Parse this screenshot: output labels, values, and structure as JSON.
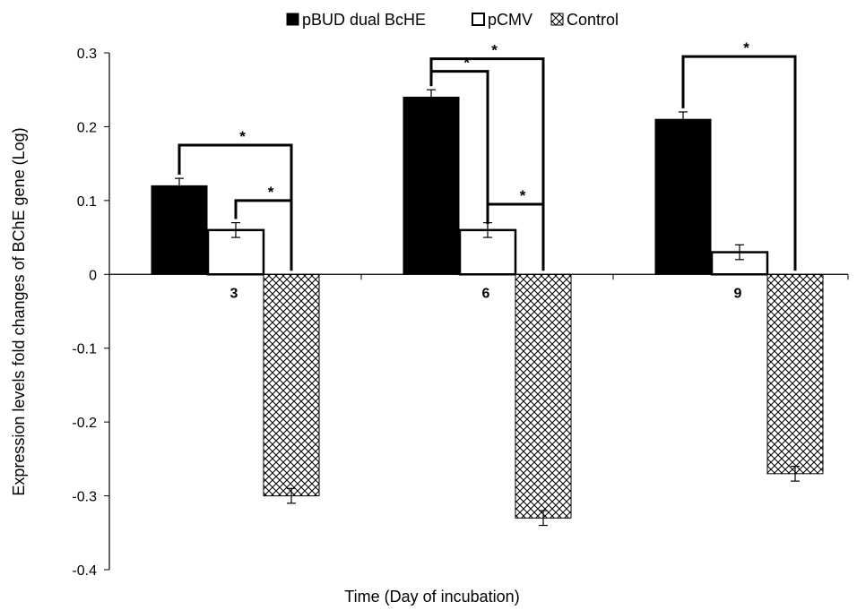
{
  "chart_data": {
    "type": "bar",
    "title": "",
    "xlabel": "Time (Day of incubation)",
    "ylabel": "Expression levels fold changes of BChE gene (Log)",
    "ylim": [
      -0.4,
      0.3
    ],
    "yticks": [
      0.3,
      0.2,
      0.1,
      0,
      -0.1,
      -0.2,
      -0.3,
      -0.4
    ],
    "ytick_labels": [
      "0.3",
      "0.2",
      "0.1",
      "0",
      "-0.1",
      "-0.2",
      "-0.3",
      "-0.4"
    ],
    "categories": [
      "3",
      "6",
      "9"
    ],
    "grid": false,
    "legend_position": "top-center",
    "series": [
      {
        "name": "pBUD dual BcHE",
        "values": [
          0.12,
          0.24,
          0.21
        ],
        "errors": [
          0.01,
          0.01,
          0.01
        ],
        "fill": "solid",
        "color": "#000000"
      },
      {
        "name": "pCMV",
        "values": [
          0.06,
          0.06,
          0.03
        ],
        "errors": [
          0.01,
          0.01,
          0.01
        ],
        "fill": "none",
        "color": "#ffffff"
      },
      {
        "name": "Control",
        "values": [
          -0.3,
          -0.33,
          -0.27
        ],
        "errors": [
          0.01,
          0.01,
          0.01
        ],
        "fill": "crosshatch",
        "color": "#000000"
      }
    ],
    "significance": [
      {
        "category": 0,
        "from": 0,
        "to": 2,
        "label": "*"
      },
      {
        "category": 0,
        "from": 1,
        "to": 2,
        "label": "*"
      },
      {
        "category": 1,
        "from": 0,
        "to": 2,
        "label": "*"
      },
      {
        "category": 1,
        "from": 0,
        "to": 1,
        "label": "*"
      },
      {
        "category": 1,
        "from": 1,
        "to": 2,
        "label": "*"
      },
      {
        "category": 2,
        "from": 0,
        "to": 2,
        "label": "*"
      }
    ]
  }
}
